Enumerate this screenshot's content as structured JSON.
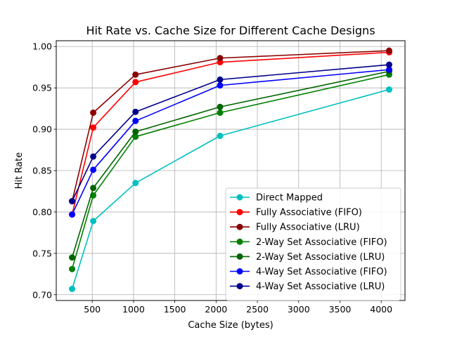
{
  "chart_data": {
    "type": "line",
    "title": "Hit Rate vs. Cache Size for Different Cache Designs",
    "xlabel": "Cache Size (bytes)",
    "ylabel": "Hit Rate",
    "xlim": [
      64,
      4288
    ],
    "ylim": [
      0.693,
      1.007
    ],
    "xticks": [
      500,
      1000,
      1500,
      2000,
      2500,
      3000,
      3500,
      4000
    ],
    "xtick_labels": [
      "500",
      "1000",
      "1500",
      "2000",
      "2500",
      "3000",
      "3500",
      "4000"
    ],
    "yticks": [
      0.7,
      0.75,
      0.8,
      0.85,
      0.9,
      0.95,
      1.0
    ],
    "ytick_labels": [
      "0.70",
      "0.75",
      "0.80",
      "0.85",
      "0.90",
      "0.95",
      "1.00"
    ],
    "grid": true,
    "legend_position": "lower-right",
    "x": [
      256,
      512,
      1024,
      2048,
      4096
    ],
    "series": [
      {
        "name": "Direct Mapped",
        "color": "#00bfbf",
        "values": [
          0.707,
          0.789,
          0.835,
          0.892,
          0.948
        ]
      },
      {
        "name": "Fully Associative (FIFO)",
        "color": "#ff0000",
        "values": [
          0.797,
          0.902,
          0.957,
          0.981,
          0.993
        ]
      },
      {
        "name": "Fully Associative (LRU)",
        "color": "#8b0000",
        "values": [
          0.813,
          0.92,
          0.966,
          0.986,
          0.995
        ]
      },
      {
        "name": "2-Way Set Associative (FIFO)",
        "color": "#008000",
        "values": [
          0.731,
          0.82,
          0.891,
          0.92,
          0.966
        ]
      },
      {
        "name": "2-Way Set Associative (LRU)",
        "color": "#006400",
        "values": [
          0.745,
          0.829,
          0.897,
          0.927,
          0.97
        ]
      },
      {
        "name": "4-Way Set Associative (FIFO)",
        "color": "#0000ff",
        "values": [
          0.797,
          0.851,
          0.91,
          0.953,
          0.972
        ]
      },
      {
        "name": "4-Way Set Associative (LRU)",
        "color": "#00008b",
        "values": [
          0.813,
          0.867,
          0.921,
          0.96,
          0.978
        ]
      }
    ]
  }
}
